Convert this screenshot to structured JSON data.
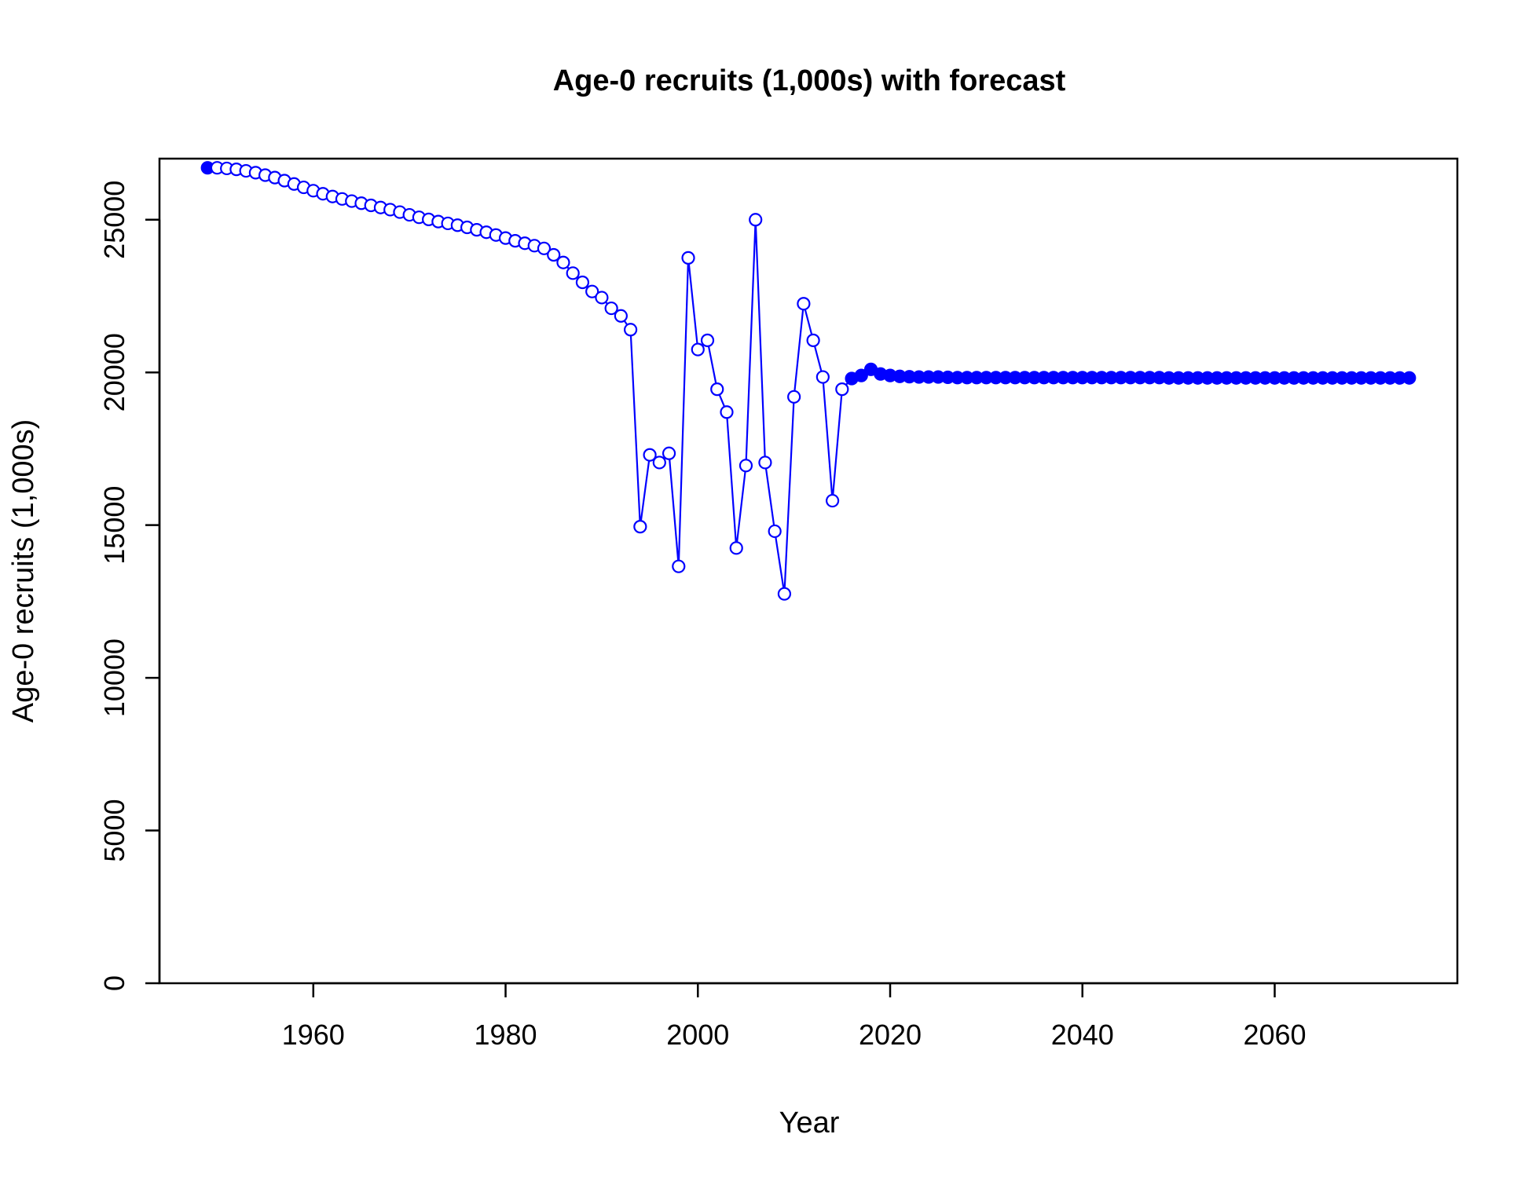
{
  "chart_data": {
    "type": "line",
    "title": "Age-0 recruits (1,000s) with forecast",
    "xlabel": "Year",
    "ylabel": "Age-0 recruits (1,000s)",
    "xlim": [
      1944,
      2079
    ],
    "ylim": [
      0,
      27000
    ],
    "x_ticks": [
      1960,
      1980,
      2000,
      2020,
      2040,
      2060
    ],
    "y_ticks": [
      0,
      5000,
      10000,
      15000,
      20000,
      25000
    ],
    "color": "#0000ff",
    "legend": "none",
    "grid": false,
    "series": [
      {
        "x": [
          1949,
          1950,
          1951,
          1952,
          1953,
          1954,
          1955,
          1956,
          1957,
          1958,
          1959,
          1960,
          1961,
          1962,
          1963,
          1964,
          1965,
          1966,
          1967,
          1968,
          1969,
          1970,
          1971,
          1972,
          1973,
          1974,
          1975,
          1976,
          1977,
          1978,
          1979,
          1980,
          1981,
          1982,
          1983,
          1984,
          1985,
          1986,
          1987,
          1988,
          1989,
          1990,
          1991,
          1992,
          1993,
          1994,
          1995,
          1996,
          1997,
          1998,
          1999,
          2000,
          2001,
          2002,
          2003,
          2004,
          2005,
          2006,
          2007,
          2008,
          2009,
          2010,
          2011,
          2012,
          2013,
          2014,
          2015,
          2016,
          2017,
          2018,
          2019,
          2020,
          2021,
          2022,
          2023,
          2024,
          2025,
          2026,
          2027,
          2028,
          2029,
          2030,
          2031,
          2032,
          2033,
          2034,
          2035,
          2036,
          2037,
          2038,
          2039,
          2040,
          2041,
          2042,
          2043,
          2044,
          2045,
          2046,
          2047,
          2048,
          2049,
          2050,
          2051,
          2052,
          2053,
          2054,
          2055,
          2056,
          2057,
          2058,
          2059,
          2060,
          2061,
          2062,
          2063,
          2064,
          2065,
          2066,
          2067,
          2068,
          2069,
          2070,
          2071,
          2072,
          2073,
          2074
        ],
        "y": [
          26700,
          26700,
          26680,
          26650,
          26600,
          26540,
          26460,
          26380,
          26280,
          26170,
          26060,
          25950,
          25850,
          25760,
          25680,
          25610,
          25540,
          25470,
          25400,
          25330,
          25250,
          25160,
          25080,
          25010,
          24940,
          24880,
          24820,
          24750,
          24670,
          24590,
          24500,
          24400,
          24310,
          24230,
          24150,
          24060,
          23850,
          23600,
          23250,
          22950,
          22650,
          22450,
          22100,
          21850,
          21400,
          14950,
          17300,
          17050,
          17350,
          13650,
          23750,
          20750,
          21050,
          19450,
          18700,
          14250,
          16950,
          25000,
          17050,
          14800,
          12750,
          19200,
          22250,
          21050,
          19850,
          15800,
          19450,
          19800,
          19900,
          20100,
          19950,
          19900,
          19870,
          19860,
          19850,
          19850,
          19850,
          19840,
          19830,
          19830,
          19830,
          19830,
          19830,
          19830,
          19830,
          19830,
          19830,
          19830,
          19830,
          19830,
          19830,
          19830,
          19830,
          19830,
          19830,
          19830,
          19830,
          19830,
          19830,
          19830,
          19820,
          19820,
          19820,
          19820,
          19820,
          19820,
          19820,
          19820,
          19820,
          19820,
          19820,
          19820,
          19820,
          19820,
          19820,
          19820,
          19820,
          19820,
          19820,
          19820,
          19820,
          19820,
          19820,
          19820,
          19820,
          19820
        ],
        "marker_style": "open circles for 1950–2015; filled circles for 1949 and 2016–2074"
      }
    ]
  }
}
